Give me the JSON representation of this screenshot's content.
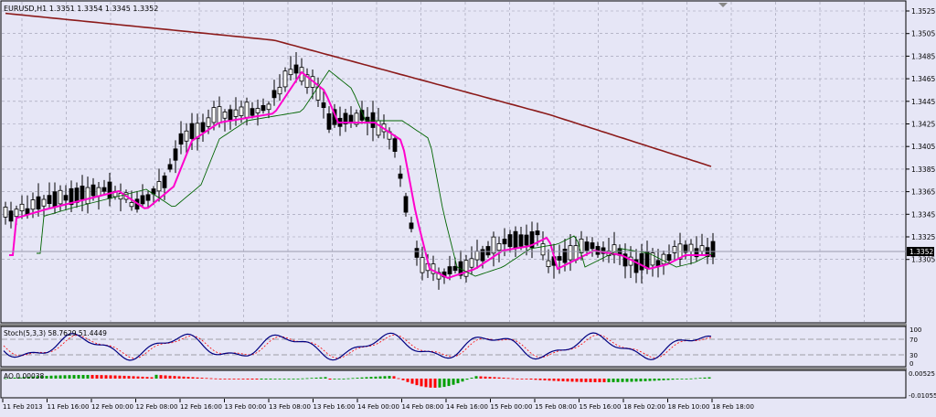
{
  "main": {
    "header": "EURUSD,H1  1.3351 1.3354 1.3345 1.3352",
    "price_ticks": [
      "1.3525",
      "1.3505",
      "1.3485",
      "1.3465",
      "1.3445",
      "1.3425",
      "1.3405",
      "1.3385",
      "1.3365",
      "1.3345",
      "1.3325",
      "1.3305"
    ],
    "current_price": "1.3352"
  },
  "stoch": {
    "header": "Stoch(5,3,3) 58.7629 51.4449",
    "ticks": [
      "100",
      "70",
      "30",
      "0"
    ]
  },
  "ao": {
    "header": "AO 0.00038",
    "ticks": [
      "0.00525",
      "-0.01055"
    ]
  },
  "time_axis": {
    "labels": [
      "11 Feb 2013",
      "11 Feb 16:00",
      "12 Feb 00:00",
      "12 Feb 08:00",
      "12 Feb 16:00",
      "13 Feb 00:00",
      "13 Feb 08:00",
      "13 Feb 16:00",
      "14 Feb 00:00",
      "14 Feb 08:00",
      "14 Feb 16:00",
      "15 Feb 00:00",
      "15 Feb 08:00",
      "15 Feb 16:00",
      "18 Feb 02:00",
      "18 Feb 10:00",
      "18 Feb 18:00"
    ]
  },
  "colors": {
    "background": "#e6e6f6",
    "grid": "#9a9aae",
    "candle": "#000000",
    "ma_fast": "#ff00cc",
    "ma_mid": "#006400",
    "ma_slow": "#8b1a1a",
    "stoch_main": "#000080",
    "stoch_signal": "#ff0000",
    "ao_up": "#00a000",
    "ao_down": "#ff0000"
  }
}
